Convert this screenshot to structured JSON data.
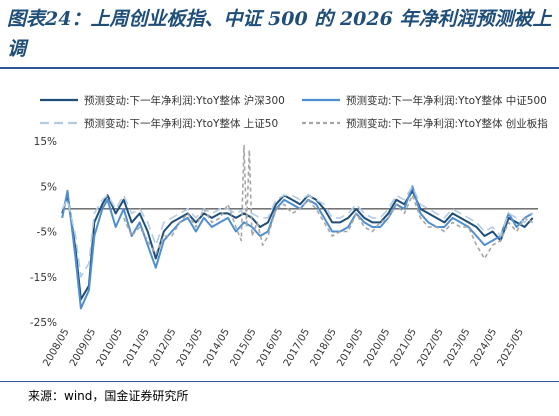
{
  "title": "图表24：上周创业板指、中证 500 的 2026 年净利润预测被上调",
  "source": "来源：wind，国金证券研究所",
  "chart_data": {
    "type": "line",
    "ylim": [
      -25,
      15
    ],
    "y_ticks": [
      "15%",
      "5%",
      "-5%",
      "-15%",
      "-25%"
    ],
    "y_tick_values": [
      15,
      5,
      -5,
      -15,
      -25
    ],
    "x_ticks": [
      "2008/05",
      "2009/05",
      "2010/05",
      "2011/05",
      "2012/05",
      "2013/05",
      "2014/05",
      "2015/05",
      "2016/05",
      "2017/05",
      "2018/05",
      "2019/05",
      "2020/05",
      "2021/05",
      "2022/05",
      "2023/05",
      "2024/05",
      "2025/05"
    ],
    "x_tick_values": [
      2008.33,
      2009.33,
      2010.33,
      2011.33,
      2012.33,
      2013.33,
      2014.33,
      2015.33,
      2016.33,
      2017.33,
      2018.33,
      2019.33,
      2020.33,
      2021.33,
      2022.33,
      2023.33,
      2024.33,
      2025.33
    ],
    "xlim": [
      2008.33,
      2026.1
    ],
    "legend_position": "top",
    "series": [
      {
        "name": "预测变动:下一年净利润:YtoY整体 沪深300",
        "color": "#1f4e79",
        "dash": "solid",
        "width": 2,
        "x": [
          2008.3,
          2008.5,
          2008.8,
          2009.0,
          2009.3,
          2009.5,
          2009.8,
          2010.0,
          2010.3,
          2010.6,
          2010.9,
          2011.2,
          2011.5,
          2011.8,
          2012.1,
          2012.4,
          2012.7,
          2013.0,
          2013.3,
          2013.6,
          2013.9,
          2014.2,
          2014.5,
          2014.8,
          2015.1,
          2015.4,
          2015.7,
          2016.0,
          2016.3,
          2016.6,
          2016.9,
          2017.2,
          2017.5,
          2017.8,
          2018.1,
          2018.4,
          2018.7,
          2019.0,
          2019.3,
          2019.6,
          2019.9,
          2020.2,
          2020.5,
          2020.8,
          2021.1,
          2021.4,
          2021.7,
          2022.0,
          2022.3,
          2022.6,
          2022.9,
          2023.2,
          2023.5,
          2023.8,
          2024.1,
          2024.4,
          2024.7,
          2025.0,
          2025.3,
          2025.6,
          2025.9
        ],
        "y": [
          -1,
          3,
          -9,
          -20,
          -17,
          -3,
          1,
          3,
          -1,
          2,
          -3,
          -1,
          -5,
          -11,
          -5,
          -3,
          -2,
          -1,
          -3,
          -1,
          -2,
          -1,
          -1,
          -2,
          -1,
          -2,
          -4,
          -3,
          1,
          3,
          2,
          1,
          3,
          2,
          0,
          -3,
          -3,
          -2,
          0,
          -2,
          -3,
          -3,
          -1,
          2,
          1,
          4,
          0,
          -1,
          -2,
          -3,
          -1,
          -2,
          -3,
          -4,
          -6,
          -5,
          -7,
          -2,
          -3,
          -4,
          -2
        ]
      },
      {
        "name": "预测变动:下一年净利润:YtoY整体 中证500",
        "color": "#4f8fd0",
        "dash": "solid",
        "width": 2,
        "x": [
          2008.3,
          2008.5,
          2008.8,
          2009.0,
          2009.3,
          2009.5,
          2009.8,
          2010.0,
          2010.3,
          2010.6,
          2010.9,
          2011.2,
          2011.5,
          2011.8,
          2012.1,
          2012.4,
          2012.7,
          2013.0,
          2013.3,
          2013.6,
          2013.9,
          2014.2,
          2014.5,
          2014.8,
          2015.1,
          2015.4,
          2015.7,
          2016.0,
          2016.3,
          2016.6,
          2016.9,
          2017.2,
          2017.5,
          2017.8,
          2018.1,
          2018.4,
          2018.7,
          2019.0,
          2019.3,
          2019.6,
          2019.9,
          2020.2,
          2020.5,
          2020.8,
          2021.1,
          2021.4,
          2021.7,
          2022.0,
          2022.3,
          2022.6,
          2022.9,
          2023.2,
          2023.5,
          2023.8,
          2024.1,
          2024.4,
          2024.7,
          2025.0,
          2025.3,
          2025.6,
          2025.9
        ],
        "y": [
          -2,
          4,
          -11,
          -22,
          -18,
          -6,
          0,
          2,
          -4,
          0,
          -6,
          -3,
          -8,
          -13,
          -7,
          -5,
          -3,
          -2,
          -5,
          -2,
          -4,
          -3,
          -2,
          -5,
          -3,
          -4,
          -6,
          -5,
          0,
          2,
          1,
          0,
          2,
          1,
          -2,
          -5,
          -5,
          -4,
          -1,
          -3,
          -4,
          -4,
          -2,
          1,
          0,
          5,
          -1,
          -3,
          -4,
          -4,
          -2,
          -3,
          -4,
          -6,
          -8,
          -7,
          -6,
          -1,
          -4,
          -2,
          -1
        ]
      },
      {
        "name": "预测变动:下一年净利润:YtoY整体 上证50",
        "color": "#b4cbe4",
        "dash": "long",
        "width": 1.6,
        "x": [
          2008.3,
          2008.5,
          2008.8,
          2009.0,
          2009.3,
          2009.5,
          2009.8,
          2010.0,
          2010.3,
          2010.6,
          2010.9,
          2011.2,
          2011.5,
          2011.8,
          2012.1,
          2012.4,
          2012.7,
          2013.0,
          2013.3,
          2013.6,
          2013.9,
          2014.2,
          2014.5,
          2014.8,
          2015.1,
          2015.4,
          2015.7,
          2016.0,
          2016.3,
          2016.6,
          2016.9,
          2017.2,
          2017.5,
          2017.8,
          2018.1,
          2018.4,
          2018.7,
          2019.0,
          2019.3,
          2019.6,
          2019.9,
          2020.2,
          2020.5,
          2020.8,
          2021.1,
          2021.4,
          2021.7,
          2022.0,
          2022.3,
          2022.6,
          2022.9,
          2023.2,
          2023.5,
          2023.8,
          2024.1,
          2024.4,
          2024.7,
          2025.0,
          2025.3,
          2025.6,
          2025.9
        ],
        "y": [
          0,
          2,
          -6,
          -15,
          -12,
          -1,
          2,
          3,
          0,
          3,
          -1,
          0,
          -3,
          -8,
          -3,
          -2,
          -1,
          0,
          -2,
          0,
          -1,
          0,
          0,
          -1,
          0,
          -1,
          -2,
          -2,
          2,
          3,
          3,
          2,
          3,
          2,
          1,
          -2,
          -2,
          -1,
          1,
          -1,
          -2,
          -2,
          0,
          3,
          2,
          5,
          1,
          0,
          -1,
          -2,
          0,
          -1,
          -2,
          -3,
          -5,
          -4,
          -6,
          -1,
          -2,
          -3,
          -1
        ]
      },
      {
        "name": "预测变动:下一年净利润:YtoY整体 创业板指",
        "color": "#a6a6a6",
        "dash": "dash",
        "width": 1.6,
        "x": [
          2010.6,
          2010.9,
          2011.2,
          2011.5,
          2011.8,
          2012.1,
          2012.4,
          2012.7,
          2013.0,
          2013.3,
          2013.6,
          2013.9,
          2014.2,
          2014.5,
          2014.8,
          2015.0,
          2015.1,
          2015.2,
          2015.3,
          2015.4,
          2015.6,
          2015.8,
          2016.0,
          2016.3,
          2016.6,
          2016.9,
          2017.2,
          2017.5,
          2017.8,
          2018.1,
          2018.4,
          2018.7,
          2019.0,
          2019.3,
          2019.6,
          2019.9,
          2020.2,
          2020.5,
          2020.8,
          2021.1,
          2021.4,
          2021.7,
          2022.0,
          2022.3,
          2022.6,
          2022.9,
          2023.2,
          2023.5,
          2023.8,
          2024.1,
          2024.4,
          2024.7,
          2025.0,
          2025.3,
          2025.6,
          2025.9
        ],
        "y": [
          -2,
          -6,
          -4,
          -7,
          -10,
          -6,
          -6,
          -3,
          -1,
          -4,
          0,
          -3,
          -2,
          1,
          -4,
          -7,
          14,
          -4,
          13,
          -6,
          -3,
          -8,
          -6,
          0,
          1,
          -1,
          0,
          2,
          0,
          -3,
          -6,
          -5,
          -5,
          -1,
          -4,
          -5,
          -3,
          -2,
          1,
          -1,
          3,
          -2,
          -4,
          -4,
          -5,
          -3,
          -4,
          -4,
          -8,
          -11,
          -8,
          -7,
          -3,
          -5,
          -2,
          -3
        ]
      }
    ]
  }
}
